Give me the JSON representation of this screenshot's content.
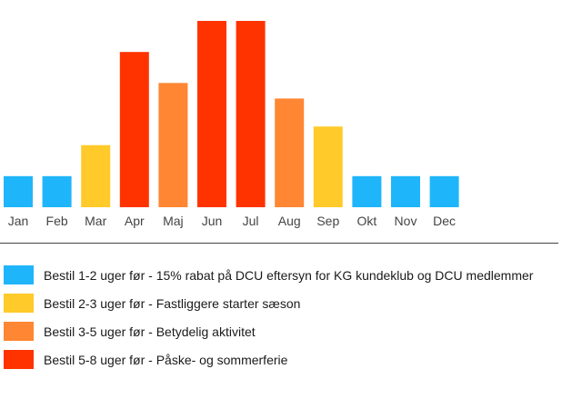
{
  "chart_data": {
    "type": "bar",
    "categories": [
      "Jan",
      "Feb",
      "Mar",
      "Apr",
      "Maj",
      "Jun",
      "Jul",
      "Aug",
      "Sep",
      "Okt",
      "Nov",
      "Dec"
    ],
    "values": [
      1,
      1,
      2,
      5,
      4,
      6,
      6,
      3.5,
      2.6,
      1,
      1,
      1
    ],
    "value_level": [
      "1-2",
      "1-2",
      "2-3",
      "5-8",
      "3-5",
      "5-8",
      "5-8",
      "3-5",
      "2-3",
      "1-2",
      "1-2",
      "1-2"
    ],
    "ylim": [
      0,
      6
    ],
    "grid": false,
    "legend_position": "bottom",
    "legend": [
      {
        "label": "Bestil 1-2 uger før - 15% rabat på DCU eftersyn for KG kundeklub og DCU medlemmer",
        "color": "#1fb5fb",
        "level": "1-2"
      },
      {
        "label": "Bestil 2-3 uger før - Fastliggere starter sæson",
        "color": "#ffca2a",
        "level": "2-3"
      },
      {
        "label": "Bestil 3-5 uger før - Betydelig aktivitet",
        "color": "#ff8632",
        "level": "3-5"
      },
      {
        "label": "Bestil 5-8 uger før - Påske- og sommerferie",
        "color": "#ff3300",
        "level": "5-8"
      }
    ]
  }
}
